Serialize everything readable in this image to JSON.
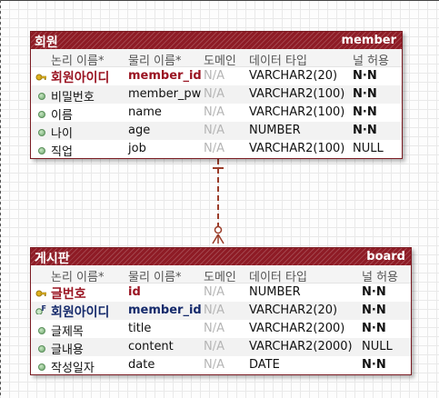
{
  "columns": {
    "logical": "논리 이름*",
    "physical": "물리 이름*",
    "domain": "도메인",
    "type": "데이터 타입",
    "null": "널 허용"
  },
  "member": {
    "logical_name": "회원",
    "physical_name": "member",
    "rows": [
      {
        "logical": "회원아이디",
        "physical": "member_id",
        "domain": "N/A",
        "type": "VARCHAR2(20)",
        "null": "N·N",
        "kind": "pk"
      },
      {
        "logical": "비밀번호",
        "physical": "member_pw",
        "domain": "N/A",
        "type": "VARCHAR2(100)",
        "null": "N·N",
        "kind": "attr"
      },
      {
        "logical": "이름",
        "physical": "name",
        "domain": "N/A",
        "type": "VARCHAR2(100)",
        "null": "N·N",
        "kind": "attr"
      },
      {
        "logical": "나이",
        "physical": "age",
        "domain": "N/A",
        "type": "NUMBER",
        "null": "N·N",
        "kind": "attr"
      },
      {
        "logical": "직업",
        "physical": "job",
        "domain": "N/A",
        "type": "VARCHAR2(100)",
        "null": "NULL",
        "kind": "attr"
      }
    ]
  },
  "board": {
    "logical_name": "게시판",
    "physical_name": "board",
    "rows": [
      {
        "logical": "글번호",
        "physical": "id",
        "domain": "N/A",
        "type": "NUMBER",
        "null": "N·N",
        "kind": "pk"
      },
      {
        "logical": "회원아이디",
        "physical": "member_id",
        "domain": "N/A",
        "type": "VARCHAR2(20)",
        "null": "N·N",
        "kind": "fk"
      },
      {
        "logical": "글제목",
        "physical": "title",
        "domain": "N/A",
        "type": "VARCHAR2(200)",
        "null": "N·N",
        "kind": "attr"
      },
      {
        "logical": "글내용",
        "physical": "content",
        "domain": "N/A",
        "type": "VARCHAR2(2000)",
        "null": "NULL",
        "kind": "attr"
      },
      {
        "logical": "작성일자",
        "physical": "date",
        "domain": "N/A",
        "type": "DATE",
        "null": "N·N",
        "kind": "attr"
      }
    ]
  },
  "relationship": {
    "from": "member",
    "to": "board",
    "cardinality": "one-to-many",
    "style": "dashed",
    "color": "#9b3d2a"
  },
  "colors": {
    "header": "#8e1b25",
    "pk_text": "#9a1422",
    "fk_text": "#152a6b",
    "key_icon": "#e0b21e",
    "attr_dot": "#6aa56a"
  }
}
